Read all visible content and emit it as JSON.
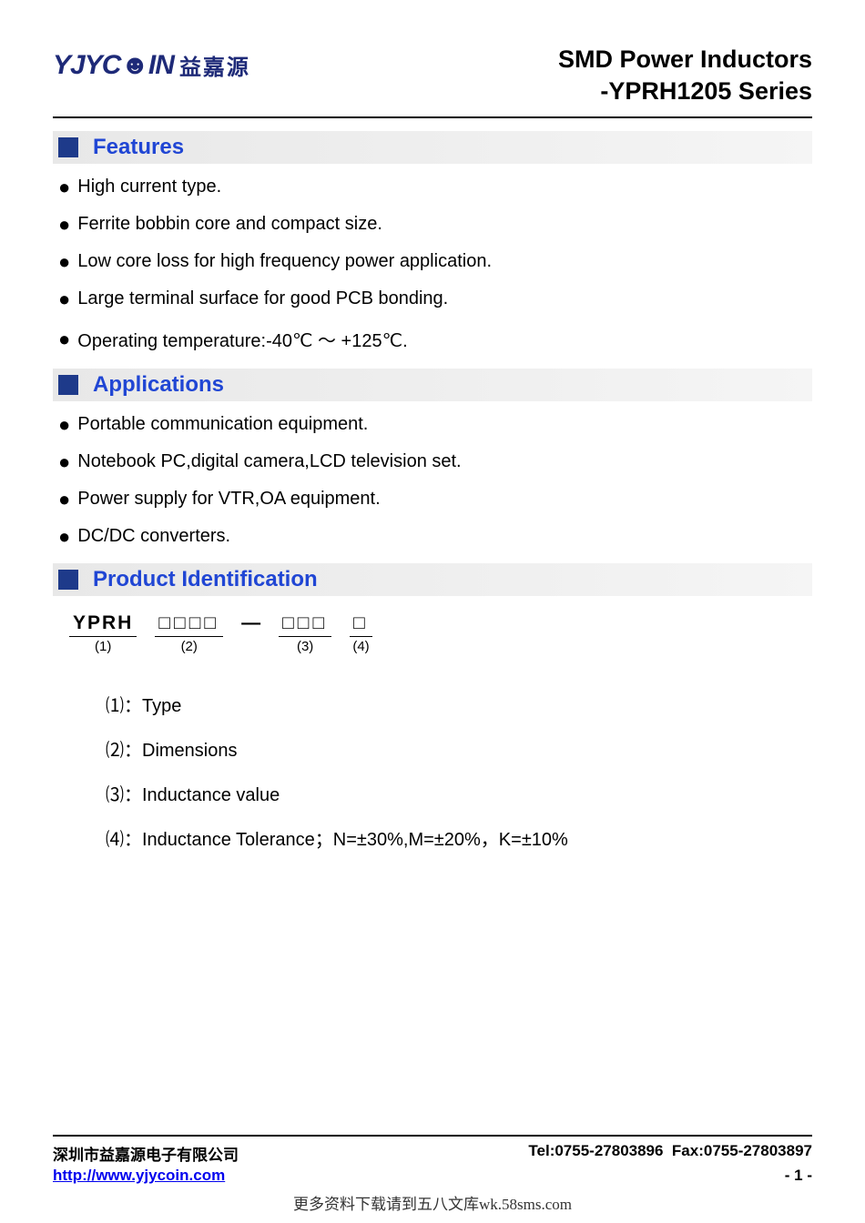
{
  "colors": {
    "brand_blue": "#1e2a78",
    "heading_blue": "#2046d4",
    "square_blue": "#1e3a8a",
    "link_blue": "#0000ee",
    "section_bg_start": "#e8e8e8",
    "section_bg_end": "#f5f5f5",
    "text": "#000000",
    "background": "#ffffff"
  },
  "typography": {
    "title_fontsize": 27,
    "section_title_fontsize": 24,
    "body_fontsize": 20,
    "footer_fontsize": 17
  },
  "logo": {
    "en": "YJYC☻IN",
    "cn": "益嘉源"
  },
  "title": {
    "line1": "SMD Power Inductors",
    "line2": "-YPRH1205 Series"
  },
  "sections": {
    "features": {
      "title": "Features",
      "items": [
        "High current type.",
        "Ferrite bobbin core and compact size.",
        "Low core loss for high frequency power application.",
        "Large terminal surface for good PCB bonding.",
        "Operating temperature:-40℃ ～ +125℃."
      ]
    },
    "applications": {
      "title": "Applications",
      "items": [
        "Portable communication equipment.",
        "Notebook PC,digital camera,LCD television set.",
        "Power supply for VTR,OA equipment.",
        "DC/DC converters."
      ]
    },
    "product_id": {
      "title": "Product Identification",
      "parts": [
        {
          "top": "YPRH",
          "label": "(1)",
          "boxes": false
        },
        {
          "top": "□□□□",
          "label": "(2)",
          "boxes": true
        },
        {
          "top": "□□□",
          "label": "(3)",
          "boxes": true
        },
        {
          "top": "□",
          "label": "(4)",
          "boxes": true
        }
      ],
      "dash_after_index": 1,
      "definitions": [
        {
          "num": "⑴",
          "text": "：Type"
        },
        {
          "num": "⑵",
          "text": "：Dimensions"
        },
        {
          "num": "⑶",
          "text": "：Inductance value"
        },
        {
          "num": "⑷",
          "text": "：Inductance Tolerance；N=±30%,M=±20%，K=±10%"
        }
      ]
    }
  },
  "footer": {
    "company": "深圳市益嘉源电子有限公司",
    "tel": "Tel:0755-27803896",
    "fax": "Fax:0755-27803897",
    "url": "http://www.yjycoin.com",
    "page": "- 1 -"
  },
  "watermark": "更多资料下载请到五八文库wk.58sms.com"
}
